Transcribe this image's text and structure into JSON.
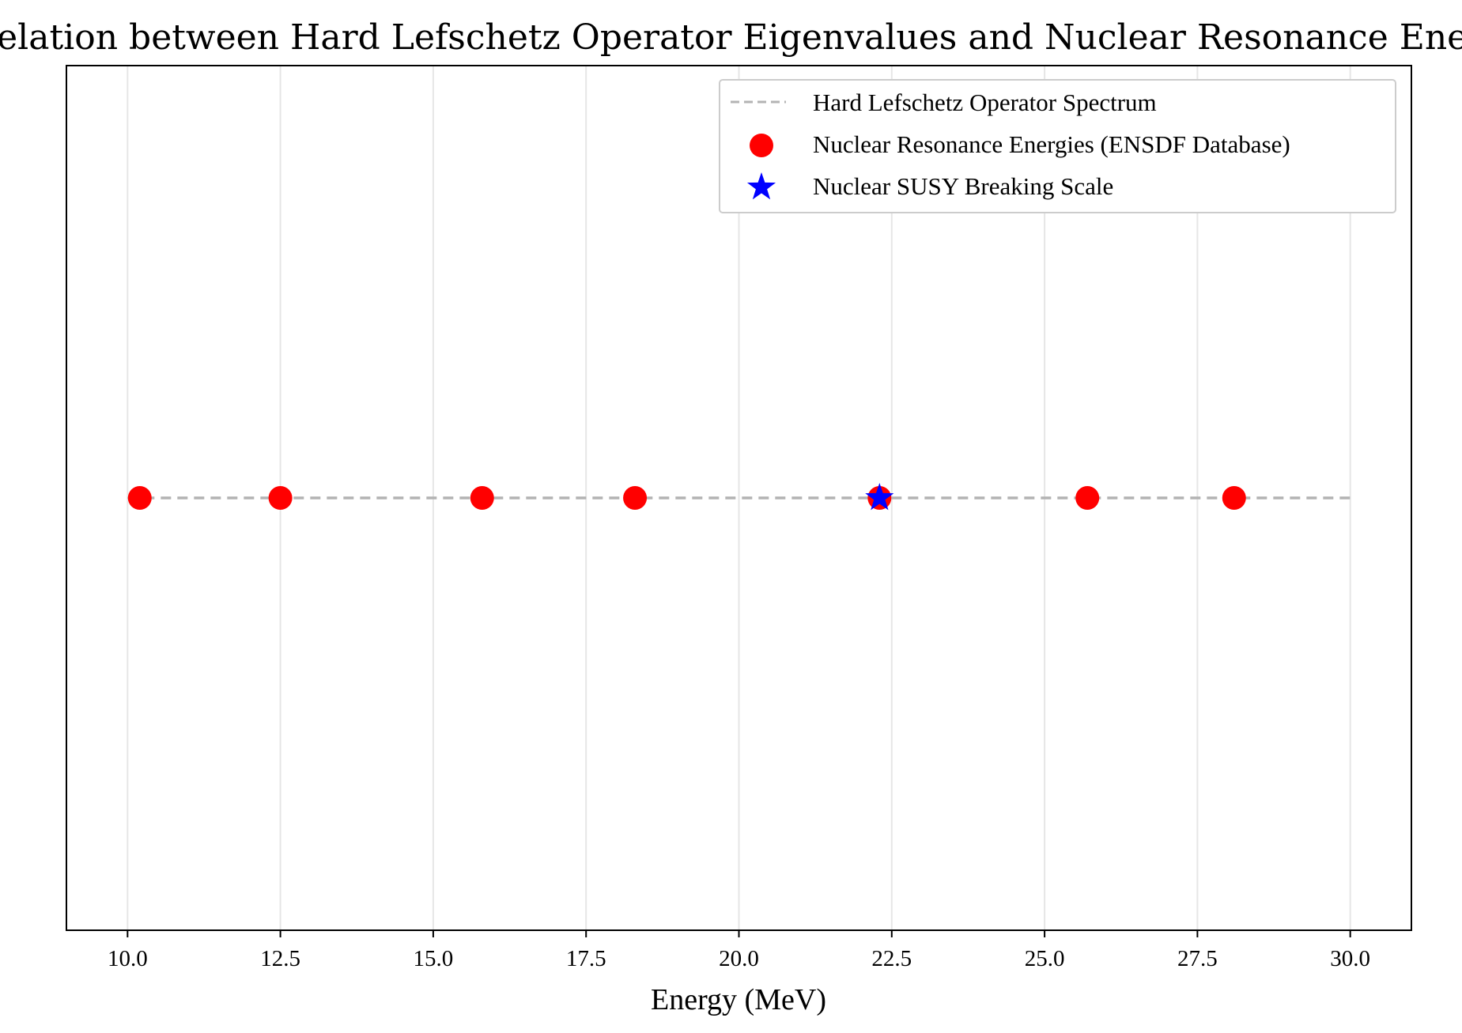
{
  "chart_data": {
    "type": "scatter",
    "title": "Correlation between Hard Lefschetz Operator Eigenvalues and Nuclear Resonance Energies",
    "xlabel": "Energy (MeV)",
    "ylabel": "",
    "xlim": [
      9.0,
      31.0
    ],
    "ylim": [
      -1.0,
      1.0
    ],
    "xticks": [
      10.0,
      12.5,
      15.0,
      17.5,
      20.0,
      22.5,
      25.0,
      27.5,
      30.0
    ],
    "xtick_labels": [
      "10.0",
      "12.5",
      "15.0",
      "17.5",
      "20.0",
      "22.5",
      "25.0",
      "27.5",
      "30.0"
    ],
    "grid": "vertical",
    "legend_position": "top-right",
    "series": [
      {
        "name": "Hard Lefschetz Operator Spectrum",
        "kind": "dashed-line",
        "color": "#b3b3b3",
        "x": [
          10.0,
          30.0
        ],
        "y": [
          0.0,
          0.0
        ]
      },
      {
        "name": "Nuclear Resonance Energies (ENSDF Database)",
        "kind": "circle",
        "color": "#ff0000",
        "x": [
          10.2,
          12.5,
          15.8,
          18.3,
          22.3,
          25.7,
          28.1
        ],
        "y": [
          0,
          0,
          0,
          0,
          0,
          0,
          0
        ]
      },
      {
        "name": "Nuclear SUSY Breaking Scale",
        "kind": "star",
        "color": "#0000ff",
        "x": [
          22.3
        ],
        "y": [
          0
        ]
      }
    ]
  }
}
